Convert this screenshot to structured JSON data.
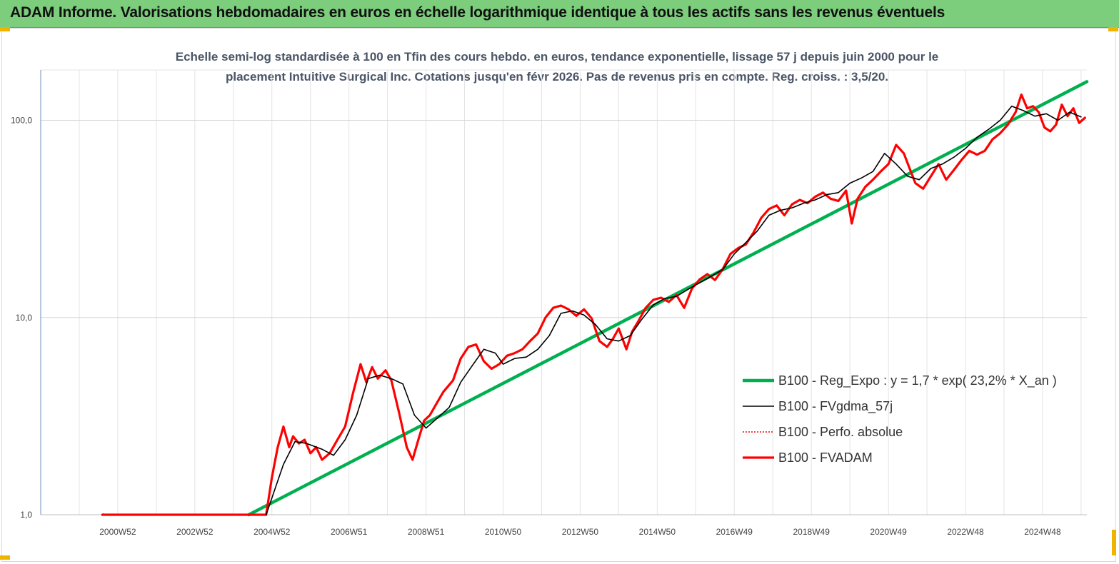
{
  "header": {
    "title": "ADAM Informe. Valorisations hebdomadaires en euros en échelle logarithmique identique à tous les actifs sans les revenus éventuels"
  },
  "colors": {
    "banner": "#7ccd7c",
    "regression": "#00b050",
    "smoothed": "#000000",
    "absolute": "#ff0000",
    "fvadam": "#ff0000",
    "corner": "#f0b400"
  },
  "chart_data": {
    "type": "line",
    "title": "Echelle semi-log standardisée à 100 en Tfin des cours hebdo. en euros, tendance exponentielle, lissage 57 j depuis juin 2000 pour le placement Intuitive Surgical Inc. Cotations jusqu'en févr 2026. Pas de revenus pris en compte. Reg. croiss. : 3,5/20.",
    "title_lines": [
      "Echelle semi-log standardisée à 100 en Tfin des cours hebdo. en euros, tendance exponentielle, lissage 57 j depuis juin 2000 pour le",
      "placement Intuitive Surgical Inc. Cotations jusqu'en févr 2026. Pas de revenus pris en compte. Reg. croiss. : 3,5/20."
    ],
    "y_scale": "log",
    "ylim": [
      1,
      180
    ],
    "y_ticks": [
      1,
      10,
      100
    ],
    "y_tick_labels": [
      "1,0",
      "10,0",
      "100,0"
    ],
    "xlim": [
      1999.0,
      2026.15
    ],
    "x_tick_labels": [
      "2000W52",
      "2002W52",
      "2004W52",
      "2006W51",
      "2008W51",
      "2010W50",
      "2012W50",
      "2014W50",
      "2016W49",
      "2018W49",
      "2020W49",
      "2022W48",
      "2024W48"
    ],
    "x_tick_positions": [
      2001,
      2003,
      2005,
      2007,
      2009,
      2011,
      2013,
      2015,
      2017,
      2019,
      2021,
      2023,
      2025
    ],
    "grid": true,
    "legend_position": "bottom-right",
    "series": [
      {
        "name": "B100 - Reg_Expo : y = 1,7 * exp( 23,2% *  X_an )",
        "style": "thick-solid",
        "x": [
          2004.4,
          2026.15
        ],
        "y": [
          1.0,
          157
        ]
      },
      {
        "name": "B100 - FVgdma_57j",
        "style": "thin-solid",
        "x": [
          2004.85,
          2005.05,
          2005.3,
          2005.6,
          2005.9,
          2006.3,
          2006.6,
          2006.9,
          2007.2,
          2007.5,
          2007.8,
          2008.1,
          2008.4,
          2008.7,
          2009.0,
          2009.3,
          2009.6,
          2009.9,
          2010.2,
          2010.5,
          2010.8,
          2011.0,
          2011.3,
          2011.6,
          2011.9,
          2012.2,
          2012.5,
          2012.8,
          2013.1,
          2013.4,
          2013.7,
          2014.0,
          2014.3,
          2014.6,
          2014.9,
          2015.2,
          2015.5,
          2015.8,
          2016.1,
          2016.4,
          2016.7,
          2017.0,
          2017.3,
          2017.6,
          2017.9,
          2018.2,
          2018.5,
          2018.8,
          2019.1,
          2019.4,
          2019.7,
          2020.0,
          2020.3,
          2020.6,
          2020.9,
          2021.2,
          2021.5,
          2021.8,
          2022.1,
          2022.4,
          2022.7,
          2023.0,
          2023.3,
          2023.6,
          2023.9,
          2024.2,
          2024.5,
          2024.8,
          2025.1,
          2025.4,
          2025.7,
          2026.0
        ],
        "y": [
          1.0,
          1.3,
          1.8,
          2.35,
          2.3,
          2.15,
          2.0,
          2.4,
          3.2,
          4.9,
          5.1,
          4.9,
          4.6,
          3.2,
          2.75,
          3.1,
          3.5,
          4.7,
          5.7,
          6.9,
          6.6,
          5.8,
          6.2,
          6.3,
          6.9,
          8.1,
          10.5,
          10.8,
          10.3,
          9.2,
          7.8,
          7.6,
          8.1,
          9.8,
          11.6,
          12.5,
          12.8,
          13.9,
          15.0,
          16.2,
          17.5,
          21.0,
          24.0,
          27.5,
          33.0,
          35.0,
          36.0,
          38.0,
          39.5,
          42.0,
          43.0,
          48.0,
          51.0,
          55.0,
          68.0,
          60.0,
          52.0,
          50.0,
          57.0,
          60.0,
          65.0,
          72.0,
          82.0,
          90.0,
          100.0,
          118.0,
          112.0,
          105.0,
          108.0,
          100.0,
          110.0,
          104.0
        ]
      },
      {
        "name": "B100 - Perfo. absolue",
        "style": "dotted",
        "x": [
          2000.6,
          2000.65
        ],
        "y": [
          1.0,
          1.02
        ]
      },
      {
        "name": "B100 - FVADAM",
        "style": "thick-solid",
        "x": [
          2000.6,
          2000.65,
          2004.85,
          2005.0,
          2005.15,
          2005.3,
          2005.45,
          2005.55,
          2005.7,
          2005.85,
          2006.0,
          2006.15,
          2006.3,
          2006.5,
          2006.7,
          2006.9,
          2007.1,
          2007.3,
          2007.45,
          2007.6,
          2007.75,
          2007.95,
          2008.1,
          2008.3,
          2008.5,
          2008.65,
          2008.8,
          2008.95,
          2009.1,
          2009.25,
          2009.45,
          2009.7,
          2009.9,
          2010.1,
          2010.3,
          2010.5,
          2010.7,
          2010.9,
          2011.1,
          2011.3,
          2011.5,
          2011.7,
          2011.9,
          2012.1,
          2012.3,
          2012.5,
          2012.7,
          2012.9,
          2013.1,
          2013.3,
          2013.5,
          2013.7,
          2013.85,
          2014.0,
          2014.2,
          2014.35,
          2014.5,
          2014.7,
          2014.9,
          2015.1,
          2015.3,
          2015.5,
          2015.7,
          2015.9,
          2016.1,
          2016.3,
          2016.5,
          2016.7,
          2016.9,
          2017.1,
          2017.3,
          2017.5,
          2017.7,
          2017.9,
          2018.1,
          2018.3,
          2018.5,
          2018.7,
          2018.9,
          2019.1,
          2019.3,
          2019.5,
          2019.7,
          2019.9,
          2020.05,
          2020.2,
          2020.4,
          2020.6,
          2020.8,
          2021.0,
          2021.2,
          2021.4,
          2021.55,
          2021.7,
          2021.9,
          2022.1,
          2022.3,
          2022.5,
          2022.7,
          2022.9,
          2023.1,
          2023.3,
          2023.5,
          2023.7,
          2023.9,
          2024.1,
          2024.3,
          2024.45,
          2024.6,
          2024.75,
          2024.9,
          2025.05,
          2025.2,
          2025.35,
          2025.5,
          2025.65,
          2025.8,
          2025.95,
          2026.1
        ],
        "y": [
          1.0,
          1.0,
          1.0,
          1.55,
          2.2,
          2.8,
          2.2,
          2.5,
          2.3,
          2.4,
          2.05,
          2.2,
          1.9,
          2.05,
          2.4,
          2.8,
          4.1,
          5.8,
          4.7,
          5.6,
          4.9,
          5.4,
          4.8,
          3.3,
          2.2,
          1.9,
          2.4,
          3.0,
          3.2,
          3.6,
          4.2,
          4.8,
          6.2,
          7.1,
          7.3,
          6.0,
          5.5,
          5.8,
          6.4,
          6.6,
          6.9,
          7.6,
          8.3,
          10.0,
          11.2,
          11.5,
          11.0,
          10.2,
          11.0,
          9.9,
          7.6,
          7.1,
          7.8,
          8.8,
          6.9,
          8.5,
          9.5,
          11.2,
          12.3,
          12.6,
          12.0,
          13.0,
          11.2,
          14.0,
          15.6,
          16.6,
          15.5,
          17.6,
          21.0,
          22.5,
          23.5,
          27.0,
          32.0,
          35.5,
          37.0,
          33.0,
          37.5,
          39.5,
          38.0,
          41.0,
          43.0,
          40.0,
          39.0,
          44.0,
          30.0,
          40.0,
          46.0,
          50.0,
          55.0,
          60.0,
          75.0,
          68.0,
          57.0,
          48.0,
          45.0,
          52.0,
          60.0,
          50.0,
          56.0,
          63.0,
          70.0,
          67.0,
          70.0,
          80.0,
          86.0,
          95.0,
          110.0,
          135.0,
          115.0,
          118.0,
          110.0,
          92.0,
          88.0,
          95.0,
          120.0,
          105.0,
          115.0,
          97.0,
          103.0
        ]
      }
    ]
  }
}
